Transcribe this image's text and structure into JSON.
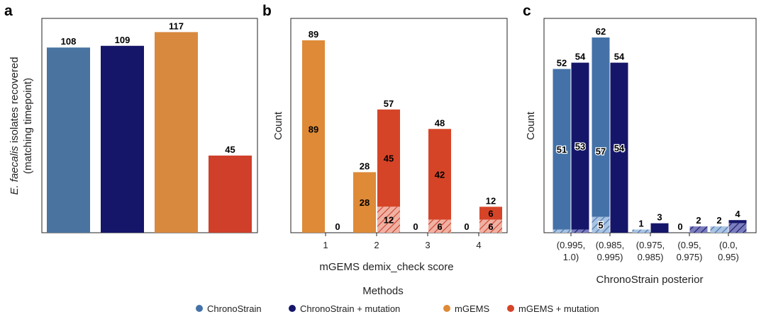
{
  "colors": {
    "chronostrain": "#4472a8",
    "chronostrain_mut": "#15166a",
    "mgems": "#de8a37",
    "mgems_mut": "#d64427",
    "panel_a": [
      "#4a73a0",
      "#15166a",
      "#d9893e",
      "#cf3f2a"
    ]
  },
  "chart_data": [
    {
      "panel": "a",
      "type": "bar",
      "title": "",
      "xlabel": "",
      "ylabel_italic": "E. faecalis",
      "ylabel_rest": " isolates recovered",
      "ylabel_line2": "(matching timepoint)",
      "categories": [
        "ChronoStrain",
        "ChronoStrain + mutation",
        "mGEMS",
        "mGEMS + mutation"
      ],
      "values": [
        108,
        109,
        117,
        45
      ],
      "value_labels": [
        "108",
        "109",
        "117",
        "45"
      ],
      "ylim": [
        0,
        125
      ]
    },
    {
      "panel": "b",
      "type": "bar",
      "xlabel": "mGEMS demix_check score",
      "ylabel": "Count",
      "categories": [
        "1",
        "2",
        "3",
        "4"
      ],
      "ylim": [
        0,
        92
      ],
      "series": [
        {
          "name": "mGEMS",
          "values": [
            89,
            28,
            0,
            0
          ],
          "labels": [
            "89",
            "28",
            "0",
            "0"
          ],
          "inner": [
            89,
            28,
            null,
            null
          ],
          "inner_labels": [
            "89",
            "28",
            "",
            ""
          ],
          "hatched": [
            0,
            0,
            0,
            0
          ]
        },
        {
          "name": "mGEMS + mutation",
          "values": [
            0,
            57,
            48,
            12
          ],
          "labels": [
            "0",
            "57",
            "48",
            "12"
          ],
          "inner": [
            null,
            45,
            42,
            6
          ],
          "inner_labels": [
            "",
            "45",
            "42",
            "6"
          ],
          "hatched": [
            0,
            12,
            6,
            6
          ],
          "hatched_labels": [
            "",
            "12",
            "6",
            "6"
          ]
        }
      ]
    },
    {
      "panel": "c",
      "type": "bar",
      "xlabel": "ChronoStrain posterior",
      "ylabel": "Count",
      "categories": [
        [
          "(0.995,",
          "1.0)"
        ],
        [
          "(0.985,",
          "0.995)"
        ],
        [
          "(0.975,",
          "0.985)"
        ],
        [
          "(0.95,",
          "0.975)"
        ],
        [
          "(0.0,",
          "0.95)"
        ]
      ],
      "ylim": [
        0,
        64
      ],
      "series": [
        {
          "name": "ChronoStrain",
          "values": [
            52,
            62,
            1,
            0,
            2
          ],
          "labels": [
            "52",
            "62",
            "1",
            "0",
            "2"
          ],
          "inner": [
            51,
            57,
            null,
            null,
            null
          ],
          "inner_labels": [
            "51",
            "57",
            "",
            "",
            ""
          ],
          "hatched": [
            1,
            5,
            1,
            0,
            2
          ],
          "hatched_labels": [
            "",
            "5",
            "",
            "",
            ""
          ]
        },
        {
          "name": "ChronoStrain + mutation",
          "values": [
            54,
            54,
            3,
            2,
            4
          ],
          "labels": [
            "54",
            "54",
            "3",
            "2",
            "4"
          ],
          "inner": [
            53,
            54,
            null,
            null,
            null
          ],
          "inner_labels": [
            "53",
            "54",
            "",
            "",
            ""
          ],
          "hatched": [
            1,
            0,
            0,
            2,
            3
          ],
          "hatched_labels": [
            "",
            "",
            "",
            "",
            ""
          ]
        }
      ]
    }
  ],
  "legend": {
    "title": "Methods",
    "items": [
      "ChronoStrain",
      "ChronoStrain + mutation",
      "mGEMS",
      "mGEMS + mutation"
    ]
  }
}
